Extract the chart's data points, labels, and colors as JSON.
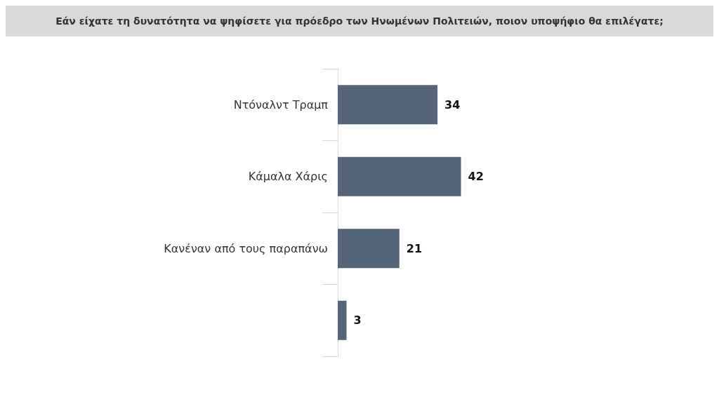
{
  "chart_data": {
    "type": "bar",
    "orientation": "horizontal",
    "title": "Εάν είχατε τη δυνατότητα να ψηφίσετε για πρόεδρο  των Ηνωμένων Πολιτειών, ποιον υποψήφιο θα επιλέγατε;",
    "categories": [
      "Ντόναλντ Τραμπ",
      "Κάμαλα Χάρις",
      "Κανέναν από τους παραπάνω",
      null
    ],
    "values": [
      34,
      42,
      21,
      3
    ],
    "color": "#556476",
    "data_labels": true
  }
}
